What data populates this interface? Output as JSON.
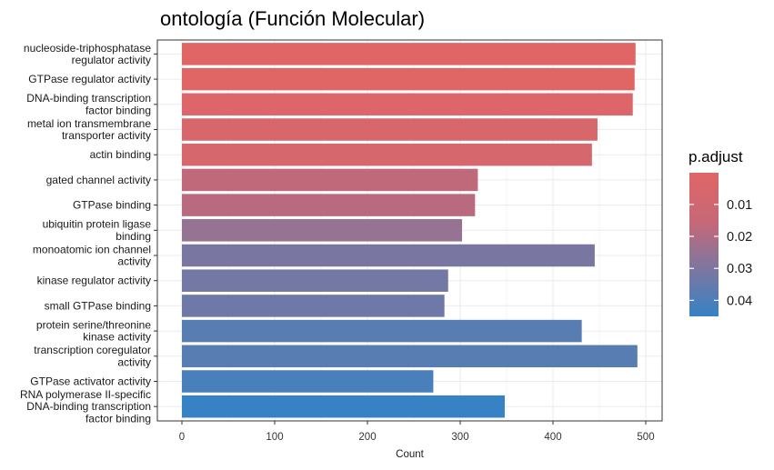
{
  "chart_data": {
    "type": "bar",
    "orientation": "horizontal",
    "title": "ontología (Función Molecular)",
    "xlabel": "Count",
    "ylabel": "",
    "xlim": [
      0,
      510
    ],
    "xticks": [
      0,
      100,
      200,
      300,
      400,
      500
    ],
    "grid": true,
    "legend_position": "right",
    "categories": [
      "nucleoside-triphosphatase\nregulator activity",
      "GTPase regulator activity",
      "DNA-binding transcription\nfactor binding",
      "metal ion transmembrane\ntransporter activity",
      "actin binding",
      "gated channel activity",
      "GTPase binding",
      "ubiquitin protein ligase\nbinding",
      "monoatomic ion channel\nactivity",
      "kinase regulator activity",
      "small GTPase binding",
      "protein serine/threonine\nkinase activity",
      "transcription coregulator\nactivity",
      "GTPase activator activity",
      "RNA polymerase II-specific\nDNA-binding transcription\nfactor binding"
    ],
    "values": [
      489,
      488,
      486,
      448,
      442,
      319,
      316,
      302,
      445,
      287,
      283,
      431,
      491,
      271,
      348
    ],
    "p_adjust": [
      0.0001,
      0.0003,
      0.0025,
      0.0045,
      0.006,
      0.017,
      0.018,
      0.025,
      0.031,
      0.032,
      0.033,
      0.038,
      0.038,
      0.041,
      0.045
    ],
    "color_scale": {
      "title": "p.adjust",
      "ticks": [
        0.01,
        0.02,
        0.03,
        0.04
      ],
      "domain": [
        0.0001,
        0.045
      ],
      "low_color": "#E06666",
      "high_color": "#3682C4"
    }
  }
}
